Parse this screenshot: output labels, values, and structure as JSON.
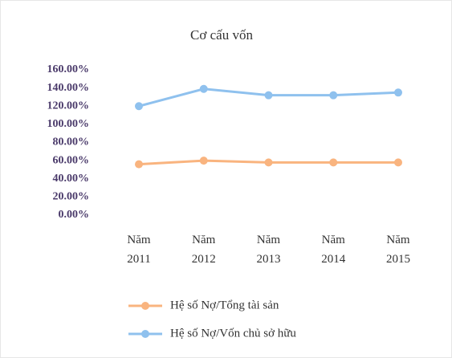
{
  "chart_data": {
    "type": "line",
    "title": "Cơ cấu vốn",
    "categories": [
      "Năm 2011",
      "Năm 2012",
      "Năm 2013",
      "Năm 2014",
      "Năm 2015"
    ],
    "series": [
      {
        "name": "Hệ số Nợ/Tổng tài sản",
        "color": "#f9b47f",
        "values": [
          56,
          60,
          58,
          58,
          58
        ]
      },
      {
        "name": "Hệ số Nợ/Vốn chủ sở hữu",
        "color": "#8fc1ee",
        "values": [
          120,
          139,
          132,
          132,
          135
        ]
      }
    ],
    "ylim": [
      0,
      160
    ],
    "yticks": [
      {
        "value": 0,
        "label": "0.00%"
      },
      {
        "value": 20,
        "label": "20.00%"
      },
      {
        "value": 40,
        "label": "40.00%"
      },
      {
        "value": 60,
        "label": "60.00%"
      },
      {
        "value": 80,
        "label": "80.00%"
      },
      {
        "value": 100,
        "label": "100.00%"
      },
      {
        "value": 120,
        "label": "120.00%"
      },
      {
        "value": 140,
        "label": "140.00%"
      },
      {
        "value": 160,
        "label": "160.00%"
      }
    ],
    "legend": "bottom"
  }
}
